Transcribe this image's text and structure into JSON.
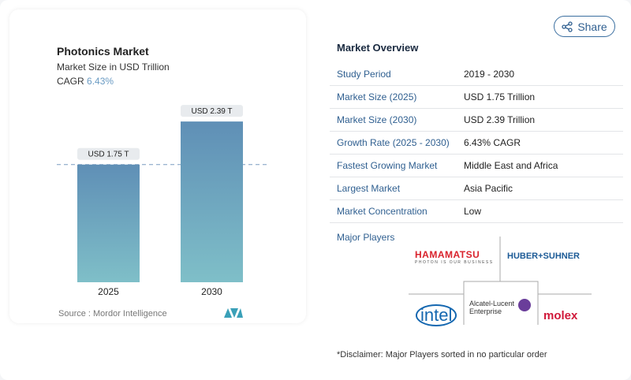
{
  "chart_card": {
    "title": "Photonics Market",
    "subtitle": "Market Size in USD Trillion",
    "cagr_label": "CAGR",
    "cagr_value": "6.43%",
    "source": "Source :  Mordor Intelligence"
  },
  "chart_data": {
    "type": "bar",
    "categories": [
      "2025",
      "2030"
    ],
    "values": [
      1.75,
      2.39
    ],
    "data_labels": [
      "USD 1.75 T",
      "USD 2.39 T"
    ],
    "title": "Photonics Market",
    "subtitle": "Market Size in USD Trillion",
    "reference_line": 1.75,
    "bar_color_top": "#5f8fb6",
    "bar_color_bottom": "#7fbfc8"
  },
  "share": {
    "label": "Share",
    "icon": "share-icon"
  },
  "overview": {
    "title": "Market Overview",
    "rows": [
      {
        "key": "Study Period",
        "value": "2019 - 2030"
      },
      {
        "key": "Market Size (2025)",
        "value": "USD 1.75 Trillion"
      },
      {
        "key": "Market Size (2030)",
        "value": "USD 2.39 Trillion"
      },
      {
        "key": "Growth Rate (2025 - 2030)",
        "value": "6.43% CAGR"
      },
      {
        "key": "Fastest Growing Market",
        "value": "Middle East and Africa"
      },
      {
        "key": "Largest Market",
        "value": "Asia Pacific"
      },
      {
        "key": "Market Concentration",
        "value": "Low"
      }
    ],
    "major_players_label": "Major Players",
    "players": [
      "HAMAMATSU",
      "HUBER+SUHNER",
      "intel",
      "Alcatel-Lucent Enterprise",
      "molex"
    ],
    "hamamatsu_tagline": "PHOTON IS OUR BUSINESS",
    "disclaimer": "*Disclaimer: Major Players sorted in no particular order"
  }
}
